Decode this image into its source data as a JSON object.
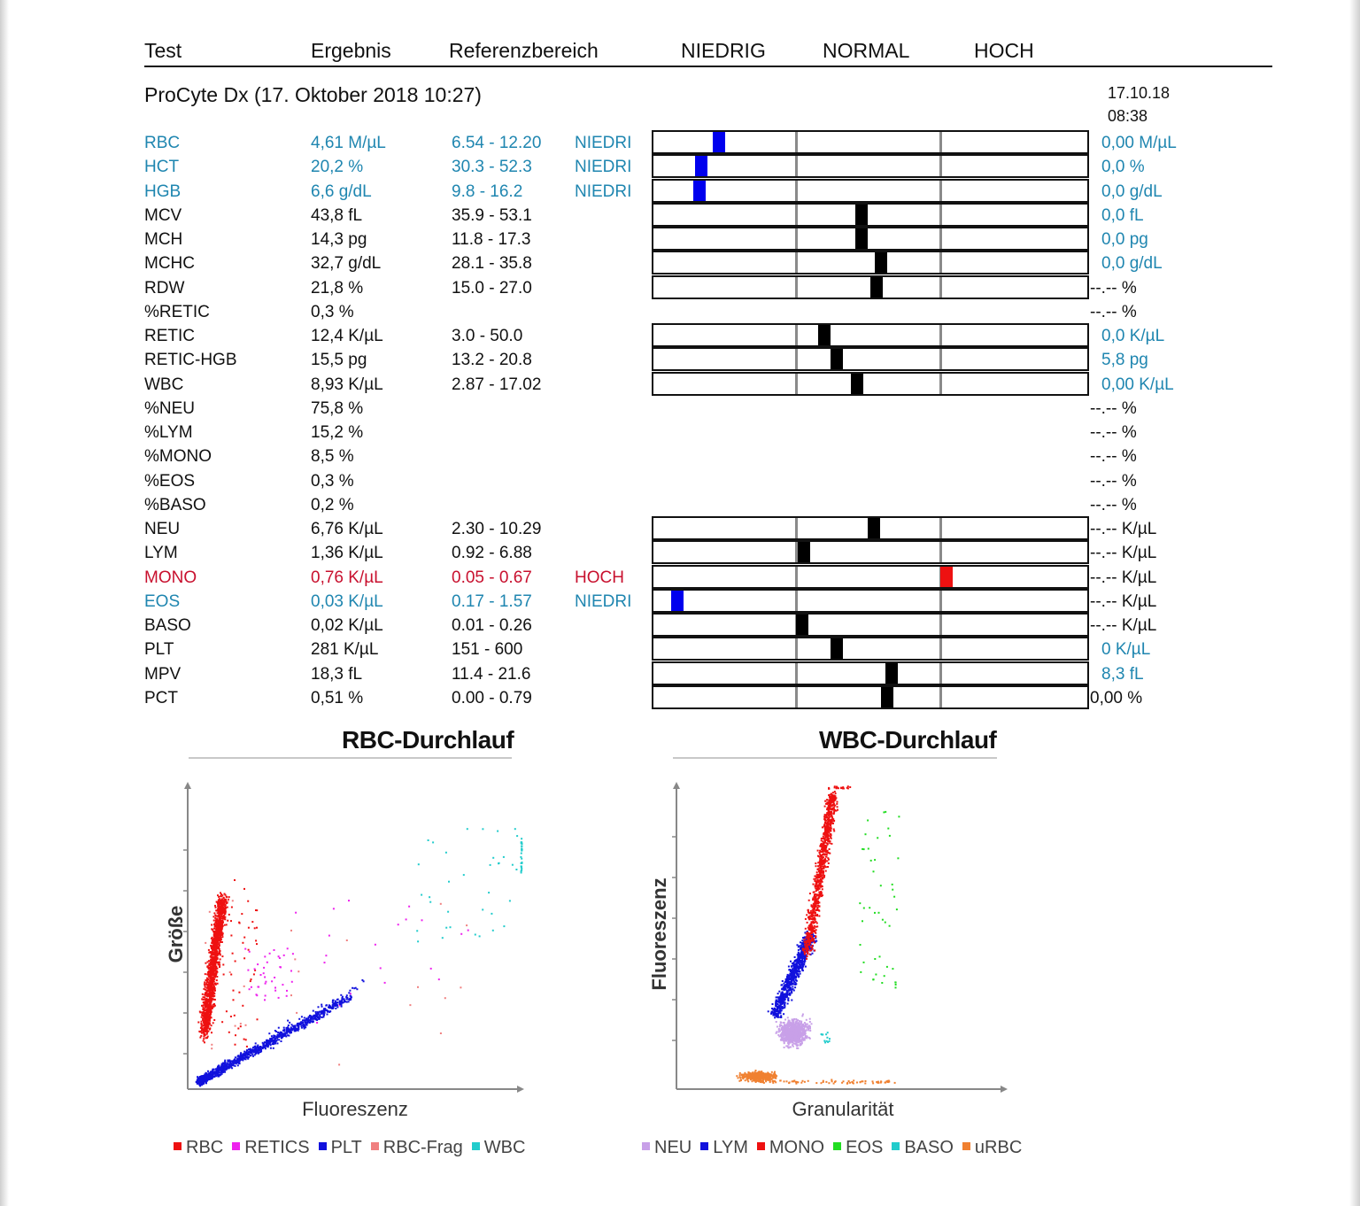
{
  "header": {
    "test": "Test",
    "result": "Ergebnis",
    "reference": "Referenzbereich",
    "low": "NIEDRIG",
    "normal": "NORMAL",
    "high": "HOCH"
  },
  "title": "ProCyte Dx (17. Oktober 2018 10:27)",
  "stamp": {
    "date": "17.10.18",
    "time": "08:38"
  },
  "colors": {
    "low": "#1f86b0",
    "high": "#c8102e",
    "marker_low": "#0000ee",
    "marker_high": "#ee1111",
    "marker_normal": "#000000"
  },
  "rows": [
    {
      "test": "RBC",
      "result": "4,61 M/µL",
      "ref": "6.54 - 12.20",
      "flag": "NIEDRI",
      "status": "low",
      "marker": 0.15,
      "right": "0,00 M/µL",
      "right_color": "blue"
    },
    {
      "test": "HCT",
      "result": "20,2 %",
      "ref": "30.3 - 52.3",
      "flag": "NIEDRI",
      "status": "low",
      "marker": 0.11,
      "right": "0,0 %",
      "right_color": "blue"
    },
    {
      "test": "HGB",
      "result": "6,6 g/dL",
      "ref": "9.8 - 16.2",
      "flag": "NIEDRI",
      "status": "low",
      "marker": 0.105,
      "right": "0,0 g/dL",
      "right_color": "blue"
    },
    {
      "test": "MCV",
      "result": "43,8 fL",
      "ref": "35.9 - 53.1",
      "flag": "",
      "status": "normal",
      "marker": 0.475,
      "right": "0,0 fL",
      "right_color": "blue"
    },
    {
      "test": "MCH",
      "result": "14,3 pg",
      "ref": "11.8 - 17.3",
      "flag": "",
      "status": "normal",
      "marker": 0.475,
      "right": "0,0 pg",
      "right_color": "blue"
    },
    {
      "test": "MCHC",
      "result": "32,7 g/dL",
      "ref": "28.1 - 35.8",
      "flag": "",
      "status": "normal",
      "marker": 0.52,
      "right": "0,0 g/dL",
      "right_color": "blue"
    },
    {
      "test": "RDW",
      "result": "21,8 %",
      "ref": "15.0 - 27.0",
      "flag": "",
      "status": "normal",
      "marker": 0.51,
      "right": "--.-- %",
      "right_color": "black"
    },
    {
      "test": "%RETIC",
      "result": "0,3 %",
      "ref": "",
      "flag": "",
      "status": "none",
      "right": "--.-- %",
      "right_color": "black"
    },
    {
      "test": "RETIC",
      "result": "12,4 K/µL",
      "ref": "3.0 - 50.0",
      "flag": "",
      "status": "normal",
      "marker": 0.39,
      "right": "0,0 K/µL",
      "right_color": "blue"
    },
    {
      "test": "RETIC-HGB",
      "result": "15,5 pg",
      "ref": "13.2 - 20.8",
      "flag": "",
      "status": "normal",
      "marker": 0.42,
      "right": "5,8 pg",
      "right_color": "blue"
    },
    {
      "test": "WBC",
      "result": "8,93 K/µL",
      "ref": "2.87 - 17.02",
      "flag": "",
      "status": "normal",
      "marker": 0.465,
      "right": "0,00 K/µL",
      "right_color": "blue"
    },
    {
      "test": "%NEU",
      "result": "75,8 %",
      "ref": "",
      "flag": "",
      "status": "none",
      "right": "--.-- %",
      "right_color": "black"
    },
    {
      "test": "%LYM",
      "result": "15,2 %",
      "ref": "",
      "flag": "",
      "status": "none",
      "right": "--.-- %",
      "right_color": "black"
    },
    {
      "test": "%MONO",
      "result": "8,5 %",
      "ref": "",
      "flag": "",
      "status": "none",
      "right": "--.-- %",
      "right_color": "black"
    },
    {
      "test": "%EOS",
      "result": "0,3 %",
      "ref": "",
      "flag": "",
      "status": "none",
      "right": "--.-- %",
      "right_color": "black"
    },
    {
      "test": "%BASO",
      "result": "0,2 %",
      "ref": "",
      "flag": "",
      "status": "none",
      "right": "--.-- %",
      "right_color": "black"
    },
    {
      "test": "NEU",
      "result": "6,76 K/µL",
      "ref": "2.30 - 10.29",
      "flag": "",
      "status": "normal",
      "marker": 0.505,
      "right": "--.-- K/µL",
      "right_color": "black"
    },
    {
      "test": "LYM",
      "result": "1,36 K/µL",
      "ref": "0.92 - 6.88",
      "flag": "",
      "status": "normal",
      "marker": 0.345,
      "right": "--.-- K/µL",
      "right_color": "black"
    },
    {
      "test": "MONO",
      "result": "0,76 K/µL",
      "ref": "0.05 - 0.67",
      "flag": "HOCH",
      "status": "high",
      "marker": 0.67,
      "right": "--.-- K/µL",
      "right_color": "black"
    },
    {
      "test": "EOS",
      "result": "0,03 K/µL",
      "ref": "0.17 - 1.57",
      "flag": "NIEDRI",
      "status": "low",
      "marker": 0.055,
      "right": "--.-- K/µL",
      "right_color": "black"
    },
    {
      "test": "BASO",
      "result": "0,02 K/µL",
      "ref": "0.01 - 0.26",
      "flag": "",
      "status": "normal",
      "marker": 0.34,
      "right": "--.-- K/µL",
      "right_color": "black"
    },
    {
      "test": "PLT",
      "result": "281 K/µL",
      "ref": "151 - 600",
      "flag": "",
      "status": "normal",
      "marker": 0.42,
      "right": "0 K/µL",
      "right_color": "blue"
    },
    {
      "test": "MPV",
      "result": "18,3 fL",
      "ref": "11.4 - 21.6",
      "flag": "",
      "status": "normal",
      "marker": 0.545,
      "right": "8,3 fL",
      "right_color": "blue"
    },
    {
      "test": "PCT",
      "result": "0,51 %",
      "ref": "0.00 - 0.79",
      "flag": "",
      "status": "normal",
      "marker": 0.535,
      "right": "0,00 %",
      "right_color": "black"
    }
  ],
  "rbc_plot": {
    "title": "RBC-Durchlauf",
    "xlabel": "Fluoreszenz",
    "ylabel": "Größe",
    "legend": [
      {
        "label": "RBC",
        "color": "#ee1111"
      },
      {
        "label": "RETICS",
        "color": "#ee22ee"
      },
      {
        "label": "PLT",
        "color": "#1111dd"
      },
      {
        "label": "RBC-Frag",
        "color": "#f08080"
      },
      {
        "label": "WBC",
        "color": "#22cccc"
      }
    ]
  },
  "wbc_plot": {
    "title": "WBC-Durchlauf",
    "xlabel": "Granularität",
    "ylabel": "Fluoreszenz",
    "legend": [
      {
        "label": "NEU",
        "color": "#c8a0e8"
      },
      {
        "label": "LYM",
        "color": "#1111dd"
      },
      {
        "label": "MONO",
        "color": "#ee1111"
      },
      {
        "label": "EOS",
        "color": "#22dd22"
      },
      {
        "label": "BASO",
        "color": "#22cccc"
      },
      {
        "label": "uRBC",
        "color": "#f08030"
      }
    ]
  }
}
